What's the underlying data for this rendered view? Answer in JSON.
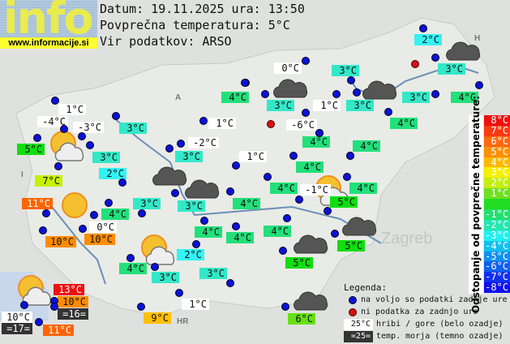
{
  "logo": {
    "text": "info",
    "url": "www.informacije.si"
  },
  "header": {
    "date_line": "Datum: 19.11.2025 ura: 13:50",
    "avg_line": "Povprečna temperatura: 5°C",
    "source_line": "Vir podatkov: ARSO"
  },
  "colors": {
    "station_ok": "#0a12d8",
    "station_missing": "#d81010",
    "mountain_bg": "#ffffff",
    "sea_bg": "#333333"
  },
  "stations": [
    {
      "temp": "2°C",
      "kind": "normal"
    },
    {
      "temp": "0°C",
      "kind": "mountain"
    },
    {
      "temp": "3°C",
      "kind": "normal"
    },
    {
      "temp": "3°C",
      "kind": "normal"
    },
    {
      "temp": "4°C",
      "kind": "normal"
    },
    {
      "temp": "3°C",
      "kind": "normal"
    },
    {
      "temp": "1°C",
      "kind": "mountain"
    },
    {
      "temp": "3°C",
      "kind": "normal"
    },
    {
      "temp": "3°C",
      "kind": "normal"
    },
    {
      "temp": "4°C",
      "kind": "normal"
    },
    {
      "temp": "1°C",
      "kind": "mountain"
    },
    {
      "temp": "-4°C",
      "kind": "mountain"
    },
    {
      "temp": "-3°C",
      "kind": "mountain"
    },
    {
      "temp": "3°C",
      "kind": "normal"
    },
    {
      "temp": "-6°C",
      "kind": "mountain"
    },
    {
      "temp": "4°C",
      "kind": "normal"
    },
    {
      "temp": "1°C",
      "kind": "mountain"
    },
    {
      "temp": "5°C",
      "kind": "normal"
    },
    {
      "temp": "-2°C",
      "kind": "mountain"
    },
    {
      "temp": "4°C",
      "kind": "normal"
    },
    {
      "temp": "4°C",
      "kind": "normal"
    },
    {
      "temp": "3°C",
      "kind": "normal"
    },
    {
      "temp": "3°C",
      "kind": "normal"
    },
    {
      "temp": "1°C",
      "kind": "mountain"
    },
    {
      "temp": "4°C",
      "kind": "normal"
    },
    {
      "temp": "2°C",
      "kind": "normal"
    },
    {
      "temp": "7°C",
      "kind": "normal"
    },
    {
      "temp": "4°C",
      "kind": "normal"
    },
    {
      "temp": "-1°C",
      "kind": "mountain"
    },
    {
      "temp": "4°C",
      "kind": "normal"
    },
    {
      "temp": "11°C",
      "kind": "normal"
    },
    {
      "temp": "3°C",
      "kind": "normal"
    },
    {
      "temp": "3°C",
      "kind": "normal"
    },
    {
      "temp": "4°C",
      "kind": "normal"
    },
    {
      "temp": "5°C",
      "kind": "normal"
    },
    {
      "temp": "4°C",
      "kind": "normal"
    },
    {
      "temp": "0°C",
      "kind": "mountain"
    },
    {
      "temp": "4°C",
      "kind": "normal"
    },
    {
      "temp": "4°C",
      "kind": "normal"
    },
    {
      "temp": "4°C",
      "kind": "normal"
    },
    {
      "temp": "10°C",
      "kind": "normal"
    },
    {
      "temp": "10°C",
      "kind": "normal"
    },
    {
      "temp": "5°C",
      "kind": "normal"
    },
    {
      "temp": "2°C",
      "kind": "normal"
    },
    {
      "temp": "5°C",
      "kind": "normal"
    },
    {
      "temp": "4°C",
      "kind": "normal"
    },
    {
      "temp": "3°C",
      "kind": "normal"
    },
    {
      "temp": "3°C",
      "kind": "normal"
    },
    {
      "temp": "13°C",
      "kind": "normal"
    },
    {
      "temp": "10°C",
      "kind": "normal"
    },
    {
      "temp": "=16=",
      "kind": "sea"
    },
    {
      "temp": "1°C",
      "kind": "mountain"
    },
    {
      "temp": "9°C",
      "kind": "normal"
    },
    {
      "temp": "6°C",
      "kind": "normal"
    },
    {
      "temp": "10°C",
      "kind": "mountain"
    },
    {
      "temp": "11°C",
      "kind": "normal"
    },
    {
      "temp": "=17=",
      "kind": "sea"
    }
  ],
  "station_dots": [
    "ok",
    "ok",
    "ok",
    "missing",
    "ok",
    "ok",
    "ok",
    "ok",
    "ok",
    "ok",
    "ok",
    "ok",
    "ok",
    "ok",
    "missing",
    "ok",
    "ok",
    "ok",
    "ok",
    "ok",
    "ok",
    "ok",
    "ok",
    "ok",
    "ok",
    "ok",
    "ok",
    "ok",
    "ok",
    "ok",
    "ok",
    "ok",
    "ok",
    "ok",
    "ok",
    "ok",
    "ok",
    "ok",
    "ok",
    "ok",
    "ok",
    "ok",
    "ok",
    "ok",
    "ok",
    "ok",
    "ok",
    "ok",
    "ok",
    "ok",
    "ok",
    "ok",
    "ok",
    "ok",
    "ok",
    "ok",
    "ok",
    "ok",
    "ok",
    "ok"
  ],
  "weather_icons": [
    "partly-cloudy",
    "sunny",
    "partly-cloudy",
    "partly-cloudy",
    "partly-cloudy",
    "cloudy",
    "cloudy",
    "cloudy",
    "cloudy",
    "cloudy",
    "cloudy",
    "cloudy",
    "cloudy"
  ],
  "map_labels": {
    "zagreb": "Zagreb",
    "hr": "HR",
    "a": "A",
    "i": "I",
    "h": "H"
  },
  "scale": {
    "title": "Odstopanje od povprečne temperature:",
    "items": [
      {
        "label": "8°C",
        "color": "#f01010"
      },
      {
        "label": "7°C",
        "color": "#ff3a10"
      },
      {
        "label": "6°C",
        "color": "#ff6a10"
      },
      {
        "label": "5°C",
        "color": "#ff9000"
      },
      {
        "label": "4°C",
        "color": "#ffb800"
      },
      {
        "label": "3°C",
        "color": "#f4f000"
      },
      {
        "label": "2°C",
        "color": "#c4ee10"
      },
      {
        "label": "1°C",
        "color": "#70e020"
      },
      {
        "label": "",
        "color": "#22dd22"
      },
      {
        "label": "-1°C",
        "color": "#22e070"
      },
      {
        "label": "-2°C",
        "color": "#22e8b0"
      },
      {
        "label": "-3°C",
        "color": "#22f0f0"
      },
      {
        "label": "-4°C",
        "color": "#10c0f0"
      },
      {
        "label": "-5°C",
        "color": "#1090f0"
      },
      {
        "label": "-6°C",
        "color": "#1060f0"
      },
      {
        "label": "-7°C",
        "color": "#1030f0"
      },
      {
        "label": "-8°C",
        "color": "#1010f0"
      }
    ]
  },
  "legend": {
    "title": "Legenda:",
    "ok": "na voljo so podatki zadnje ure",
    "missing": "ni podatka za zadnjo uro",
    "mountain_sample": "25°C",
    "mountain": "hribi / gore (belo ozadje)",
    "sea_sample": "=25=",
    "sea": "temp. morja (temno ozadje)"
  }
}
